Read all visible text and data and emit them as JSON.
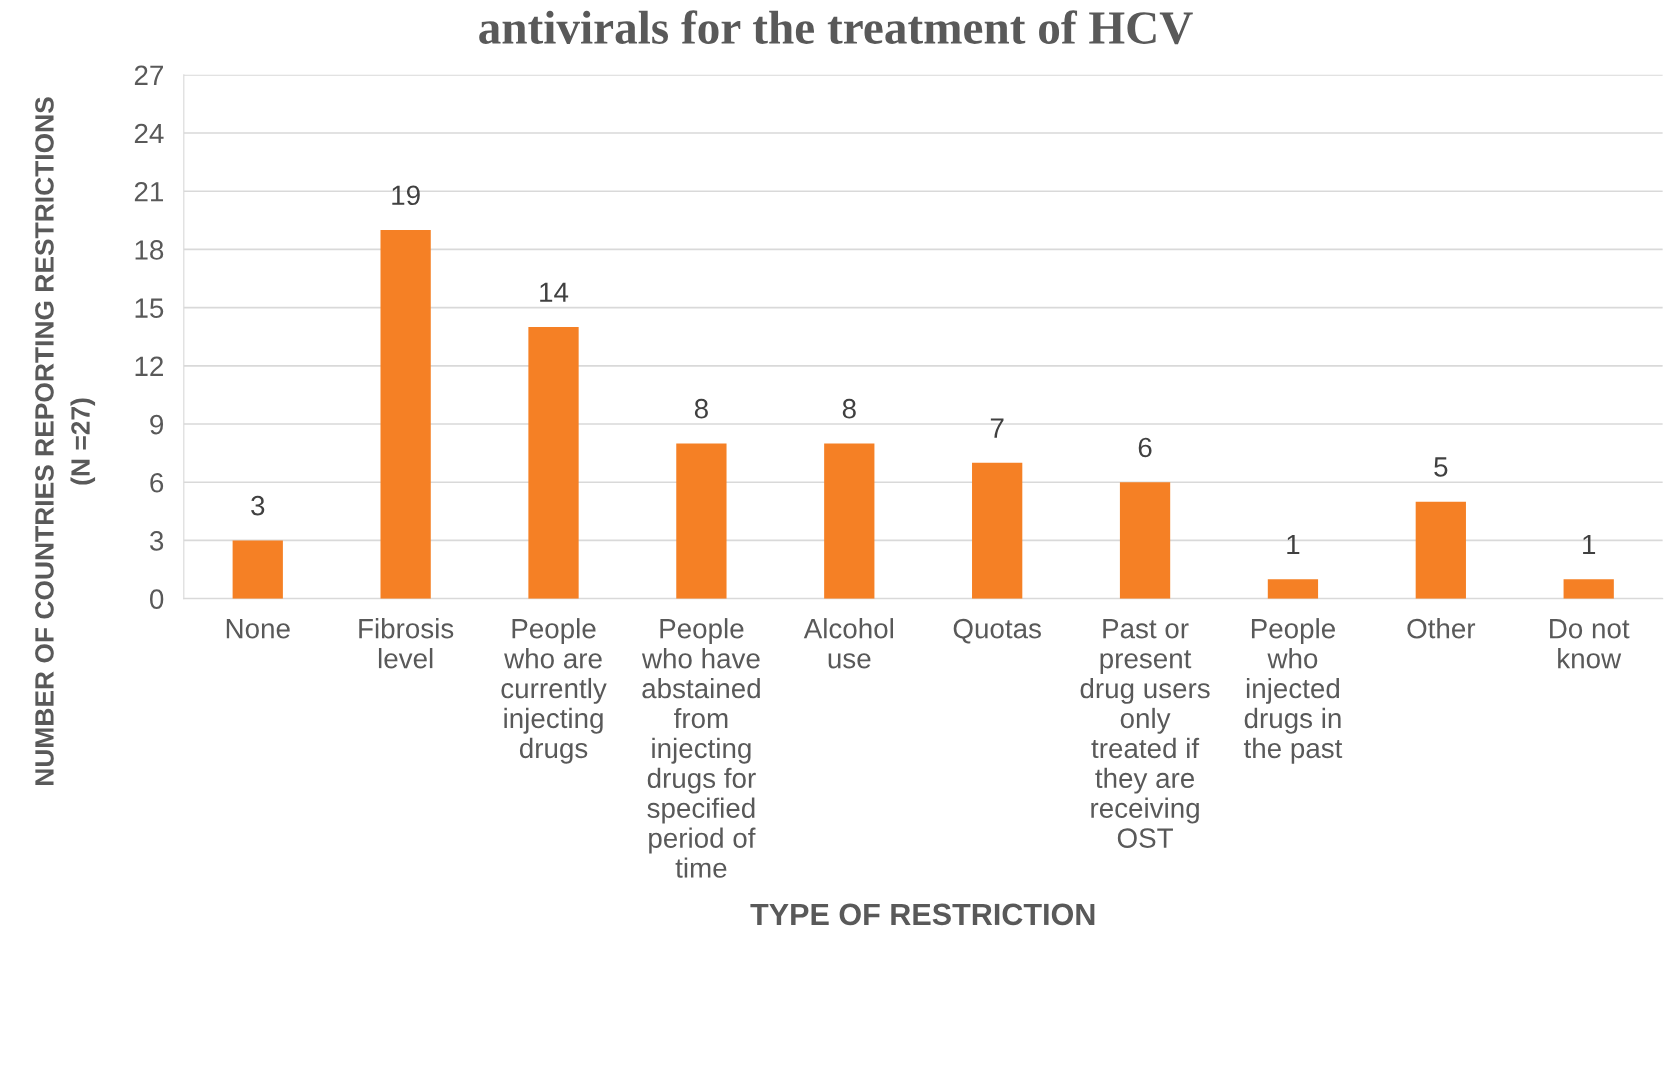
{
  "chart_data": {
    "type": "bar",
    "title": "antivirals for the treatment of HCV",
    "xlabel": "TYPE OF RESTRICTION",
    "ylabel": "NUMBER OF COUNTRIES REPORTING RESTRICTIONS\n(N =27)",
    "categories": [
      "None",
      "Fibrosis\nlevel",
      "People\nwho are\ncurrently\ninjecting\ndrugs",
      "People\nwho have\nabstained\nfrom\ninjecting\ndrugs for\nspecified\nperiod of\ntime",
      "Alcohol\nuse",
      "Quotas",
      "Past or\npresent\ndrug users\nonly\ntreated if\nthey are\nreceiving\nOST",
      "People\nwho\ninjected\ndrugs in\nthe past",
      "Other",
      "Do not\nknow"
    ],
    "values": [
      3,
      19,
      14,
      8,
      8,
      7,
      6,
      1,
      5,
      1
    ],
    "color": "#f58025",
    "ylim": [
      0,
      27
    ],
    "yticks": [
      0,
      3,
      6,
      9,
      12,
      15,
      18,
      21,
      24,
      27
    ],
    "grid": "y",
    "data_labels": true
  }
}
